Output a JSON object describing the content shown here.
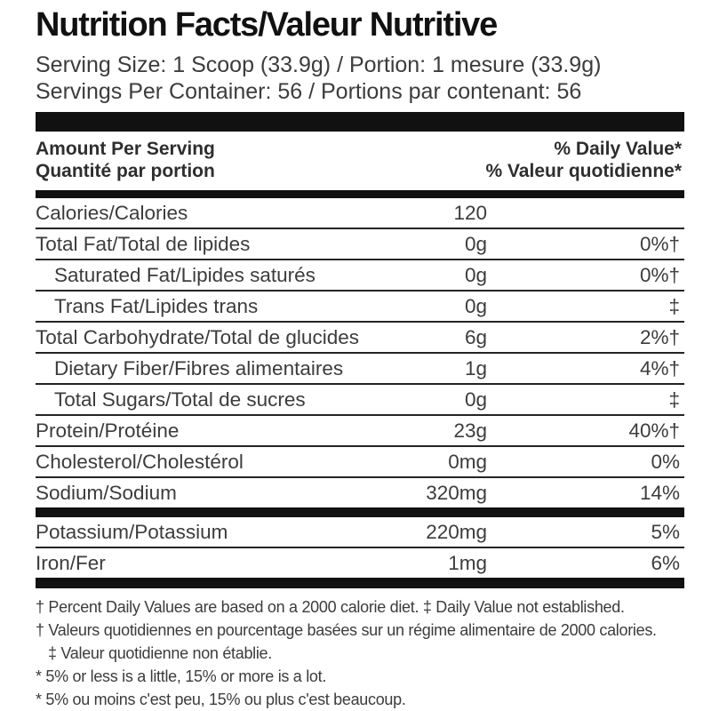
{
  "colors": {
    "ink": "#111111",
    "text": "#3c3c3c"
  },
  "label": {
    "title": "Nutrition Facts/Valeur Nutritive",
    "serving_size": "Serving Size: 1 Scoop (33.9g) / Portion: 1 mesure (33.9g)",
    "servings_per_container": "Servings Per Container: 56 / Portions par contenant: 56",
    "column_headers": {
      "amount_en": "Amount Per Serving",
      "amount_fr": "Quantité par portion",
      "daily_value_en": "% Daily Value*",
      "daily_value_fr": "% Valeur quotidienne*"
    },
    "nutrients": [
      {
        "name": "Calories/Calories",
        "amount": "120",
        "dv": "",
        "indent": false,
        "bar_after": "thin"
      },
      {
        "name": "Total Fat/Total de lipides",
        "amount": "0g",
        "dv": "0%†",
        "indent": false,
        "bar_after": "thin"
      },
      {
        "name": "Saturated Fat/Lipides saturés",
        "amount": "0g",
        "dv": "0%†",
        "indent": true,
        "bar_after": "thin"
      },
      {
        "name": "Trans Fat/Lipides trans",
        "amount": "0g",
        "dv": "‡",
        "indent": true,
        "bar_after": "thin"
      },
      {
        "name": "Total Carbohydrate/Total de glucides",
        "amount": "6g",
        "dv": "2%†",
        "indent": false,
        "bar_after": "thin"
      },
      {
        "name": "Dietary Fiber/Fibres alimentaires",
        "amount": "1g",
        "dv": "4%†",
        "indent": true,
        "bar_after": "thin"
      },
      {
        "name": "Total Sugars/Total de sucres",
        "amount": "0g",
        "dv": "‡",
        "indent": true,
        "bar_after": "thin"
      },
      {
        "name": "Protein/Protéine",
        "amount": "23g",
        "dv": "40%†",
        "indent": false,
        "bar_after": "thin"
      },
      {
        "name": "Cholesterol/Cholestérol",
        "amount": "0mg",
        "dv": "0%",
        "indent": false,
        "bar_after": "thin"
      },
      {
        "name": "Sodium/Sodium",
        "amount": "320mg",
        "dv": "14%",
        "indent": false,
        "bar_after": "thick"
      },
      {
        "name": "Potassium/Potassium",
        "amount": "220mg",
        "dv": "5%",
        "indent": false,
        "bar_after": "thin"
      },
      {
        "name": "Iron/Fer",
        "amount": "1mg",
        "dv": "6%",
        "indent": false,
        "bar_after": "thick"
      }
    ],
    "footnotes": [
      "† Percent Daily Values are based on a 2000 calorie diet. ‡ Daily Value not established.",
      "† Valeurs quotidiennes en pourcentage basées sur un régime alimentaire de 2000 calories. ‡ Valeur quotidienne non établie.",
      "* 5% or less is a little, 15% or more is a lot.",
      "* 5% ou moins c'est peu, 15% ou plus c'est beaucoup."
    ]
  }
}
